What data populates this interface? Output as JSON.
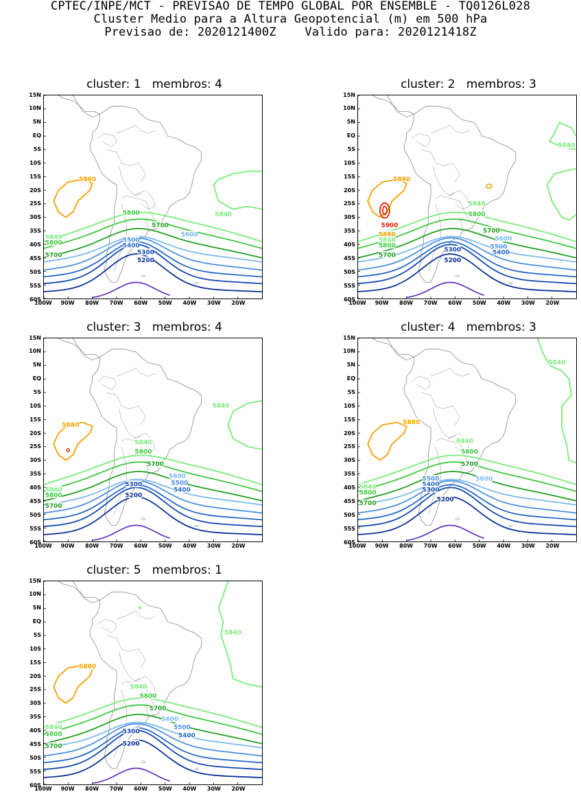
{
  "header": {
    "line1": "CPTEC/INPE/MCT - PREVISAO DE TEMPO GLOBAL POR ENSEMBLE - TQ0126L028",
    "line2": "Cluster Medio para a Altura Geopotencial (m) em 500 hPa",
    "line3": "Previsao de: 2020121400Z    Valido para: 2020121418Z"
  },
  "axes": {
    "lat_ticks": [
      "15N",
      "10N",
      "5N",
      "EQ",
      "5S",
      "10S",
      "15S",
      "20S",
      "25S",
      "30S",
      "35S",
      "40S",
      "45S",
      "50S",
      "55S",
      "60S"
    ],
    "lon_ticks": [
      "100W",
      "90W",
      "80W",
      "70W",
      "60W",
      "50W",
      "40W",
      "30W",
      "20W"
    ]
  },
  "colors": {
    "c5900": "#e02000",
    "c5880": "#f5a000",
    "c5840": "#78ec78",
    "c5800": "#3cc83c",
    "c5700": "#1ea01e",
    "c5600": "#7abaf0",
    "c5500": "#4a90e0",
    "c5400": "#2468c8",
    "c5300": "#1046b0",
    "c5200": "#0a2e96",
    "c5100": "#6a38c0",
    "coast": "#888888"
  },
  "panels": [
    {
      "title": "cluster: 1   membros: 4",
      "labels": {
        "l5880": "5880",
        "l5840a": "5840",
        "l5840b": "5840",
        "l5800a": "5800",
        "l5800b": "5800",
        "l5700a": "5700",
        "l5700b": "5700",
        "l5600": "5600",
        "l5500": "5500",
        "l5400": "5400",
        "l5300": "5300",
        "l5200": "5200"
      }
    },
    {
      "title": "cluster: 2   membros: 3",
      "labels": {
        "l5900": "5900",
        "l5880a": "5880",
        "l5880b": "5880",
        "l5840a": "5840",
        "l5840b": "5840",
        "l5840c": "5840",
        "l5800a": "5800",
        "l5800b": "5800",
        "l5700a": "5700",
        "l5700b": "5700",
        "l5600": "5600",
        "l5500": "5500",
        "l5400": "5400",
        "l5300": "5300",
        "l5200": "5200"
      }
    },
    {
      "title": "cluster: 3   membros: 4",
      "labels": {
        "l5880": "5880",
        "l5840a": "5840",
        "l5840b": "5840",
        "l5840c": "5840",
        "l5800a": "5800",
        "l5800b": "5800",
        "l5700a": "5700",
        "l5700b": "5700",
        "l5600": "5600",
        "l5500": "5500",
        "l5400": "5400",
        "l5300": "5300",
        "l5200": "5200"
      }
    },
    {
      "title": "cluster: 4   membros: 3",
      "labels": {
        "l5880": "5880",
        "l5840a": "5840",
        "l5840b": "5840",
        "l5840c": "5840",
        "l5800a": "5800",
        "l5800b": "5800",
        "l5700a": "5700",
        "l5700b": "5700",
        "l5600": "5600",
        "l5500": "5500",
        "l5400": "5400",
        "l5300": "5300",
        "l5200": "5200"
      }
    },
    {
      "title": "cluster: 5   membros: 1",
      "labels": {
        "l5880": "5880",
        "l5840a": "5840",
        "l5840b": "5840",
        "l5840c": "5840",
        "l5800a": "5800",
        "l5800b": "5800",
        "l5700a": "5700",
        "l5700b": "5700",
        "l5600": "5600",
        "l5500": "5500",
        "l5400": "5400",
        "l5300": "5300",
        "l5200": "5200"
      }
    }
  ]
}
